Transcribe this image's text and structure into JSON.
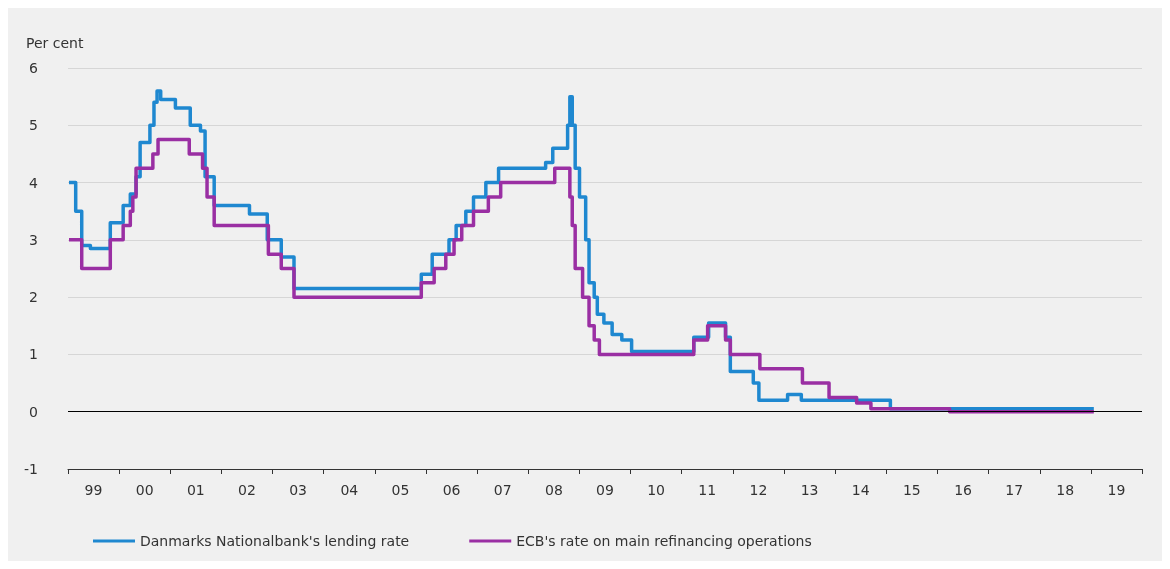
{
  "chart_data": {
    "type": "step",
    "ylabel": "Per cent",
    "xlim": [
      "1999-01-01",
      "2020-01-01"
    ],
    "ylim": [
      -1,
      6
    ],
    "yticks": [
      -1,
      0,
      1,
      2,
      3,
      4,
      5,
      6
    ],
    "xticks": [
      {
        "value": "1999-01-01",
        "label": null
      },
      {
        "value": "1999-07-02",
        "label": "99"
      },
      {
        "value": "2000-01-01",
        "label": null
      },
      {
        "value": "2000-07-02",
        "label": "00"
      },
      {
        "value": "2001-01-01",
        "label": null
      },
      {
        "value": "2001-07-02",
        "label": "01"
      },
      {
        "value": "2002-01-01",
        "label": null
      },
      {
        "value": "2002-07-02",
        "label": "02"
      },
      {
        "value": "2003-01-01",
        "label": null
      },
      {
        "value": "2003-07-02",
        "label": "03"
      },
      {
        "value": "2004-01-01",
        "label": null
      },
      {
        "value": "2004-07-02",
        "label": "04"
      },
      {
        "value": "2005-01-01",
        "label": null
      },
      {
        "value": "2005-07-02",
        "label": "05"
      },
      {
        "value": "2006-01-01",
        "label": null
      },
      {
        "value": "2006-07-02",
        "label": "06"
      },
      {
        "value": "2007-01-01",
        "label": null
      },
      {
        "value": "2007-07-02",
        "label": "07"
      },
      {
        "value": "2008-01-01",
        "label": null
      },
      {
        "value": "2008-07-02",
        "label": "08"
      },
      {
        "value": "2009-01-01",
        "label": null
      },
      {
        "value": "2009-07-02",
        "label": "09"
      },
      {
        "value": "2010-01-01",
        "label": null
      },
      {
        "value": "2010-07-02",
        "label": "10"
      },
      {
        "value": "2011-01-01",
        "label": null
      },
      {
        "value": "2011-07-02",
        "label": "11"
      },
      {
        "value": "2012-01-01",
        "label": null
      },
      {
        "value": "2012-07-02",
        "label": "12"
      },
      {
        "value": "2013-01-01",
        "label": null
      },
      {
        "value": "2013-07-02",
        "label": "13"
      },
      {
        "value": "2014-01-01",
        "label": null
      },
      {
        "value": "2014-07-02",
        "label": "14"
      },
      {
        "value": "2015-01-01",
        "label": null
      },
      {
        "value": "2015-07-02",
        "label": "15"
      },
      {
        "value": "2016-01-01",
        "label": null
      },
      {
        "value": "2016-07-02",
        "label": "16"
      },
      {
        "value": "2017-01-01",
        "label": null
      },
      {
        "value": "2017-07-02",
        "label": "17"
      },
      {
        "value": "2018-01-01",
        "label": null
      },
      {
        "value": "2018-07-02",
        "label": "18"
      },
      {
        "value": "2019-01-01",
        "label": null
      },
      {
        "value": "2019-07-02",
        "label": "19"
      },
      {
        "value": "2020-01-01",
        "label": null
      }
    ],
    "grid": "y",
    "legend": "bottom",
    "marker": "none",
    "ref_lines": [
      {
        "axis": "y",
        "value": 0,
        "color": "#000000"
      }
    ],
    "series": [
      {
        "name": "Danmarks Nationalbank's lending rate",
        "color": "#1f88d0",
        "x": [
          "1999-01-08",
          "1999-02-25",
          "1999-04-09",
          "1999-06-10",
          "1999-10-30",
          "2000-01-30",
          "2000-03-21",
          "2000-05-01",
          "2000-05-30",
          "2000-08-08",
          "2000-09-06",
          "2000-09-28",
          "2000-10-24",
          "2001-02-06",
          "2001-05-23",
          "2001-08-04",
          "2001-09-06",
          "2001-11-10",
          "2002-07-20",
          "2002-11-24",
          "2003-03-04",
          "2003-06-03",
          "2005-11-28",
          "2006-02-14",
          "2006-06-14",
          "2006-08-04",
          "2006-10-12",
          "2006-12-06",
          "2007-03-04",
          "2007-06-03",
          "2008-05-04",
          "2008-06-24",
          "2008-10-08",
          "2008-10-24",
          "2008-11-10",
          "2008-12-01",
          "2009-01-01",
          "2009-02-14",
          "2009-03-10",
          "2009-04-16",
          "2009-05-08",
          "2009-06-24",
          "2009-08-22",
          "2009-10-30",
          "2010-01-08",
          "2011-03-28",
          "2011-07-12",
          "2011-11-10",
          "2011-12-14",
          "2012-05-26",
          "2012-07-05",
          "2013-01-26",
          "2013-05-04",
          "2015-01-30",
          "2019-01-22"
        ],
        "values": [
          4.0,
          3.5,
          2.9,
          2.85,
          3.3,
          3.6,
          3.8,
          4.1,
          4.7,
          5.0,
          5.4,
          5.6,
          5.45,
          5.3,
          5.0,
          4.9,
          4.1,
          3.6,
          3.45,
          3.0,
          2.7,
          2.15,
          2.4,
          2.75,
          3.0,
          3.25,
          3.5,
          3.75,
          4.0,
          4.25,
          4.35,
          4.6,
          5.0,
          5.5,
          5.0,
          4.25,
          3.75,
          3.0,
          2.25,
          2.0,
          1.7,
          1.55,
          1.35,
          1.25,
          1.05,
          1.3,
          1.55,
          1.3,
          0.7,
          0.5,
          0.2,
          0.3,
          0.2,
          0.05,
          0.05
        ]
      },
      {
        "name": "ECB's rate on main refinancing operations",
        "color": "#9a2fa3",
        "x": [
          "1999-01-08",
          "1999-04-09",
          "1999-10-30",
          "2000-01-30",
          "2000-03-21",
          "2000-04-08",
          "2000-05-01",
          "2000-08-29",
          "2000-10-05",
          "2001-05-16",
          "2001-08-19",
          "2001-09-20",
          "2001-11-10",
          "2002-12-02",
          "2003-03-04",
          "2003-06-03",
          "2005-11-28",
          "2006-02-28",
          "2006-05-22",
          "2006-07-20",
          "2006-09-13",
          "2006-12-06",
          "2007-03-22",
          "2007-06-18",
          "2008-07-08",
          "2008-10-24",
          "2008-11-10",
          "2008-12-01",
          "2009-01-23",
          "2009-03-10",
          "2009-04-16",
          "2009-05-23",
          "2011-03-28",
          "2011-07-05",
          "2011-11-10",
          "2011-12-14",
          "2012-07-12",
          "2013-05-12",
          "2013-11-18",
          "2014-06-03",
          "2014-09-13",
          "2016-03-28",
          "2019-01-22"
        ],
        "values": [
          3.0,
          2.5,
          3.0,
          3.25,
          3.5,
          3.75,
          4.25,
          4.5,
          4.75,
          4.5,
          4.25,
          3.75,
          3.25,
          2.75,
          2.5,
          2.0,
          2.25,
          2.5,
          2.75,
          3.0,
          3.25,
          3.5,
          3.75,
          4.0,
          4.25,
          3.75,
          3.25,
          2.5,
          2.0,
          1.5,
          1.25,
          1.0,
          1.25,
          1.5,
          1.25,
          1.0,
          0.75,
          0.5,
          0.25,
          0.15,
          0.05,
          0.0,
          0.0
        ]
      }
    ]
  }
}
